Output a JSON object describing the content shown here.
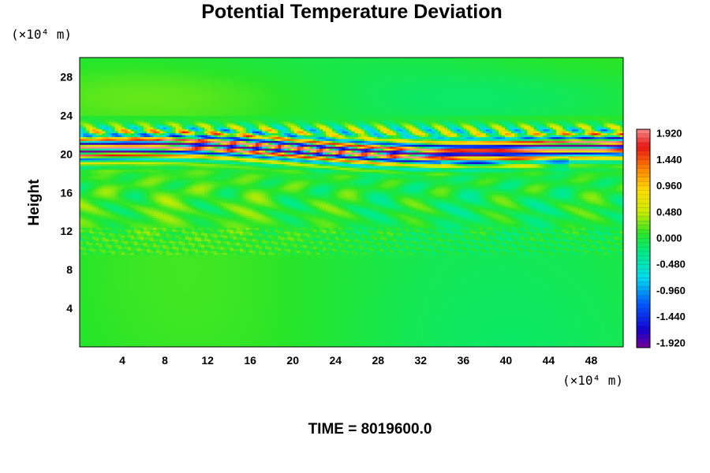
{
  "chart_data": {
    "type": "heatmap",
    "title": "Potential Temperature Deviation",
    "xlabel": "",
    "ylabel": "Height",
    "x_unit": "(×10⁴ m)",
    "y_unit": "(×10⁴ m)",
    "xlim": [
      0,
      51
    ],
    "ylim": [
      0,
      30
    ],
    "x_ticks": [
      4,
      8,
      12,
      16,
      20,
      24,
      28,
      32,
      36,
      40,
      44,
      48
    ],
    "y_ticks": [
      4,
      8,
      12,
      16,
      20,
      24,
      28
    ],
    "colorbar": {
      "min": -2.0,
      "max": 2.0,
      "tick_values": [
        1.92,
        1.44,
        0.96,
        0.48,
        0.0,
        -0.48,
        -0.96,
        -1.44,
        -1.92
      ],
      "tick_labels": [
        "1.920",
        "1.440",
        "0.960",
        "0.480",
        "0.000",
        "-0.480",
        "-0.960",
        "-1.440",
        "-1.920"
      ]
    },
    "field_summary": {
      "background_value": 0.0,
      "strong_layer_y_range": [
        19.5,
        21.5
      ],
      "strong_layer_amplitude": 2.0,
      "weak_wave_region_y_range": [
        12,
        18
      ],
      "weak_wave_amplitude": 0.35
    },
    "annotation": "TIME = 8019600.0"
  }
}
